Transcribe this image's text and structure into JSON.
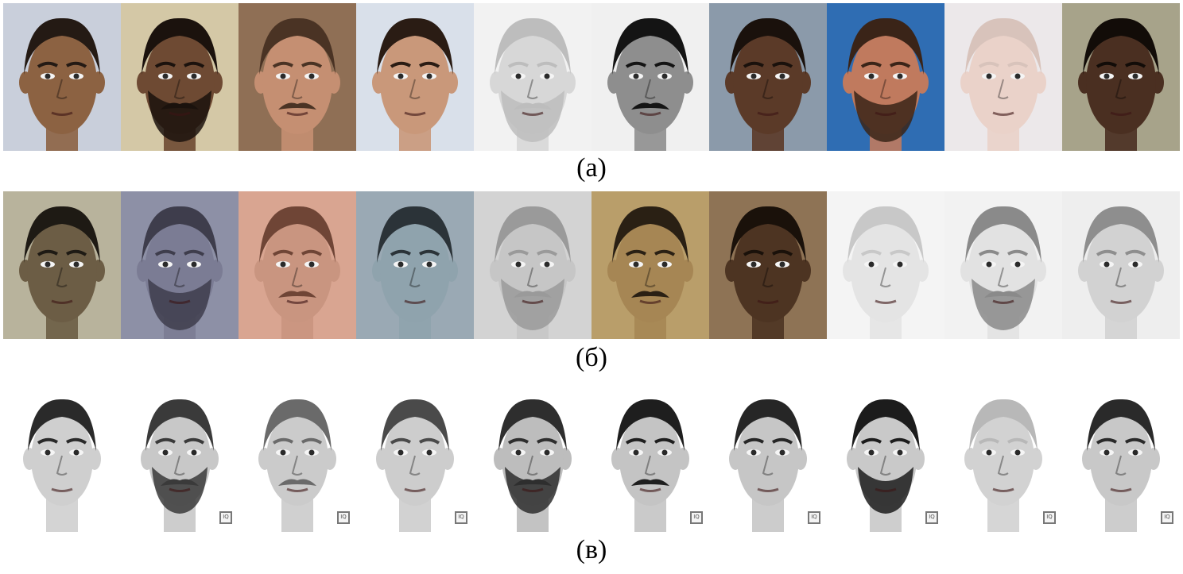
{
  "captions": {
    "a": "(а)",
    "b": "(б)",
    "c": "(в)"
  },
  "rows": {
    "photos": [
      {
        "bg": "#c9cfdb",
        "skin": "#8c6242",
        "hair": "#241a14",
        "beard": false,
        "mustache": false
      },
      {
        "bg": "#d4c8a6",
        "skin": "#6e4a33",
        "hair": "#1b120d",
        "beard": true,
        "mustache": true
      },
      {
        "bg": "#8f6f55",
        "skin": "#c58f72",
        "hair": "#4a3324",
        "beard": false,
        "mustache": true
      },
      {
        "bg": "#d9e0ea",
        "skin": "#c9987a",
        "hair": "#2a1c14",
        "beard": false,
        "mustache": false
      },
      {
        "bg": "#f2f2f2",
        "skin": "#d7d7d7",
        "hair": "#bdbdbd",
        "beard": true,
        "mustache": true
      },
      {
        "bg": "#f0f0f0",
        "skin": "#8e8e8e",
        "hair": "#141414",
        "beard": false,
        "mustache": true
      },
      {
        "bg": "#8b9aaa",
        "skin": "#5b3a28",
        "hair": "#1a110c",
        "beard": false,
        "mustache": false
      },
      {
        "bg": "#2f6db3",
        "skin": "#c07a5e",
        "hair": "#3a2418",
        "beard": true,
        "mustache": false
      },
      {
        "bg": "#ece8ea",
        "skin": "#ead2c9",
        "hair": "#d8c3bb",
        "beard": false,
        "mustache": false
      },
      {
        "bg": "#a7a38a",
        "skin": "#4a2f21",
        "hair": "#120c08",
        "beard": false,
        "mustache": false
      }
    ],
    "sketches": [
      {
        "bg": "#b8b39c",
        "skin": "#6c5d45",
        "hair": "#1e1a14",
        "beard": false,
        "mustache": false
      },
      {
        "bg": "#8d90a6",
        "skin": "#7b7c94",
        "hair": "#3e3d4c",
        "beard": true,
        "mustache": false
      },
      {
        "bg": "#d9a591",
        "skin": "#c99580",
        "hair": "#6f4536",
        "beard": false,
        "mustache": true
      },
      {
        "bg": "#9aa9b4",
        "skin": "#8fa3ad",
        "hair": "#2b3338",
        "beard": false,
        "mustache": false
      },
      {
        "bg": "#d3d3d3",
        "skin": "#c6c6c6",
        "hair": "#9a9a9a",
        "beard": true,
        "mustache": true
      },
      {
        "bg": "#b99e6a",
        "skin": "#a68654",
        "hair": "#2a2014",
        "beard": false,
        "mustache": true
      },
      {
        "bg": "#8e7355",
        "skin": "#4d3422",
        "hair": "#1a110a",
        "beard": false,
        "mustache": false
      },
      {
        "bg": "#f4f4f4",
        "skin": "#e4e4e4",
        "hair": "#c8c8c8",
        "beard": false,
        "mustache": false
      },
      {
        "bg": "#f2f2f2",
        "skin": "#e2e2e2",
        "hair": "#8a8a8a",
        "beard": true,
        "mustache": true
      },
      {
        "bg": "#eeeeee",
        "skin": "#d2d2d2",
        "hair": "#8e8e8e",
        "beard": false,
        "mustache": false
      }
    ],
    "composites": [
      {
        "bg": "#ffffff",
        "skin": "#cfcfcf",
        "hair": "#2a2a2a",
        "beard": false,
        "mustache": false,
        "watermark": false
      },
      {
        "bg": "#ffffff",
        "skin": "#c8c8c8",
        "hair": "#3a3a3a",
        "beard": true,
        "mustache": true,
        "watermark": true
      },
      {
        "bg": "#ffffff",
        "skin": "#cbcbcb",
        "hair": "#6a6a6a",
        "beard": false,
        "mustache": true,
        "watermark": true
      },
      {
        "bg": "#ffffff",
        "skin": "#cdcdcd",
        "hair": "#4a4a4a",
        "beard": false,
        "mustache": false,
        "watermark": true
      },
      {
        "bg": "#ffffff",
        "skin": "#bdbdbd",
        "hair": "#2e2e2e",
        "beard": true,
        "mustache": true,
        "watermark": false
      },
      {
        "bg": "#ffffff",
        "skin": "#c4c4c4",
        "hair": "#1e1e1e",
        "beard": false,
        "mustache": true,
        "watermark": true
      },
      {
        "bg": "#ffffff",
        "skin": "#c6c6c6",
        "hair": "#262626",
        "beard": false,
        "mustache": false,
        "watermark": true
      },
      {
        "bg": "#ffffff",
        "skin": "#c9c9c9",
        "hair": "#1c1c1c",
        "beard": true,
        "mustache": false,
        "watermark": true
      },
      {
        "bg": "#ffffff",
        "skin": "#d2d2d2",
        "hair": "#b8b8b8",
        "beard": false,
        "mustache": false,
        "watermark": true
      },
      {
        "bg": "#ffffff",
        "skin": "#c8c8c8",
        "hair": "#2a2a2a",
        "beard": false,
        "mustache": false,
        "watermark": true
      }
    ]
  },
  "watermark_text": "IQ"
}
